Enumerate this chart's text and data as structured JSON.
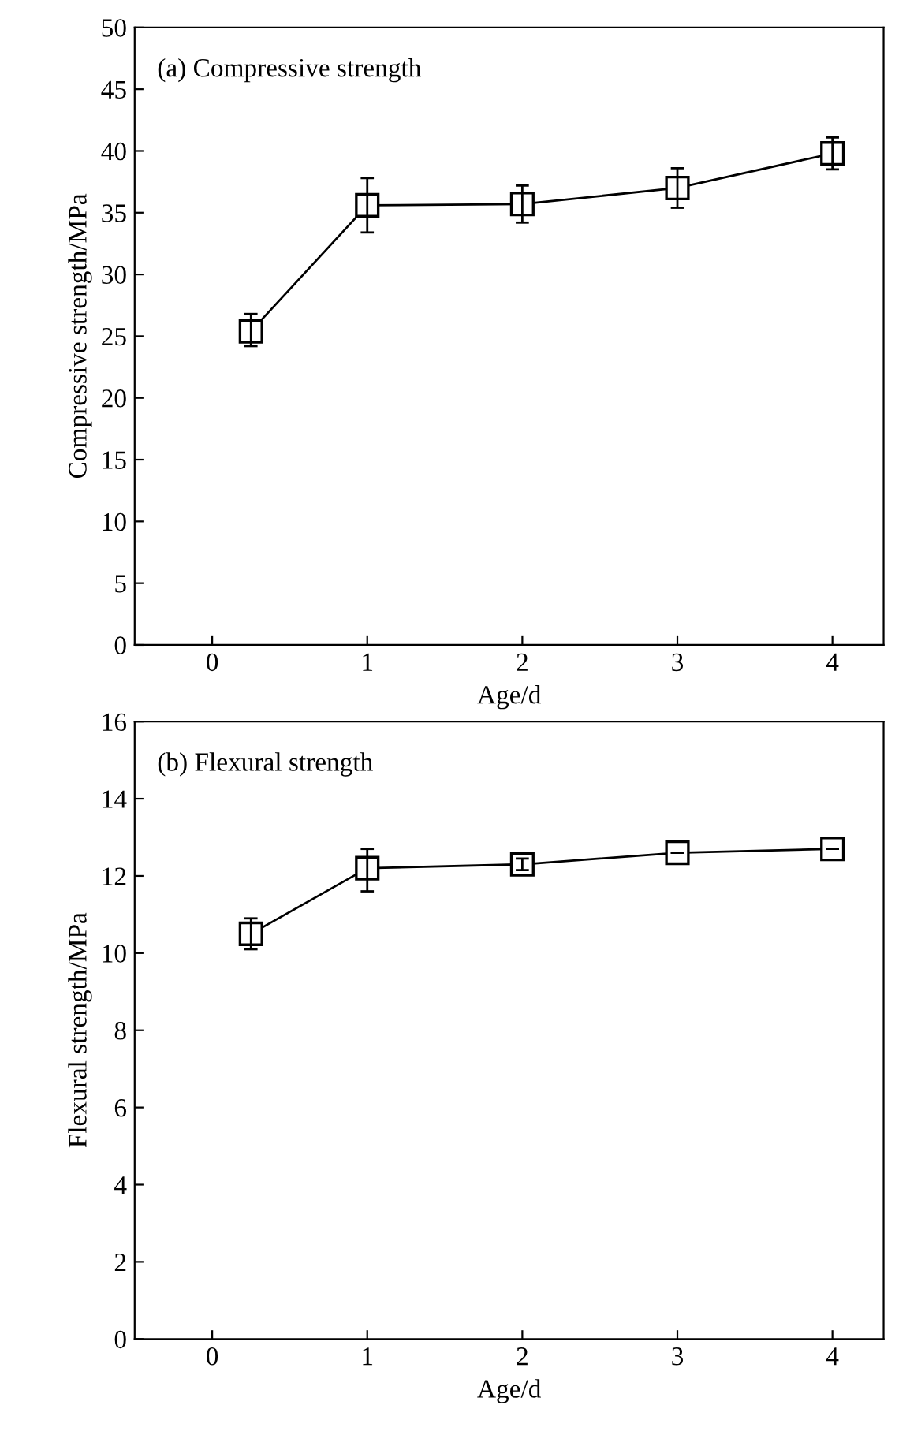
{
  "chart_data": [
    {
      "type": "line",
      "title": "(a) Compressive strength",
      "xlabel": "Age/d",
      "ylabel": "Compressive strength/MPa",
      "x": [
        0.25,
        1,
        2,
        3,
        4
      ],
      "values": [
        25.4,
        35.6,
        35.7,
        37.0,
        39.8
      ],
      "errors": [
        [
          24.2,
          26.8
        ],
        [
          33.4,
          37.8
        ],
        [
          34.2,
          37.2
        ],
        [
          35.4,
          38.6
        ],
        [
          38.5,
          41.1
        ]
      ],
      "color": "#000000",
      "marker": "square",
      "line_style": "solid",
      "xlim": [
        -0.5,
        4.33
      ],
      "xticks": [
        0,
        1,
        2,
        3,
        4
      ],
      "ylim": [
        0,
        50
      ],
      "yticks": [
        0,
        5,
        10,
        15,
        20,
        25,
        30,
        35,
        40,
        45,
        50
      ],
      "grid": false,
      "legend": false
    },
    {
      "type": "line",
      "title": "(b) Flexural strength",
      "xlabel": "Age/d",
      "ylabel": "Flexural strength/MPa",
      "x": [
        0.25,
        1,
        2,
        3,
        4
      ],
      "values": [
        10.5,
        12.2,
        12.3,
        12.6,
        12.7
      ],
      "errors": [
        [
          10.1,
          10.9
        ],
        [
          11.6,
          12.7
        ],
        [
          12.15,
          12.45
        ],
        null,
        null
      ],
      "color": "#000000",
      "marker": "square",
      "line_style": "solid",
      "xlim": [
        -0.5,
        4.33
      ],
      "xticks": [
        0,
        1,
        2,
        3,
        4
      ],
      "ylim": [
        0,
        16
      ],
      "yticks": [
        0,
        2,
        4,
        6,
        8,
        10,
        12,
        14,
        16
      ],
      "grid": false,
      "legend": false
    }
  ]
}
